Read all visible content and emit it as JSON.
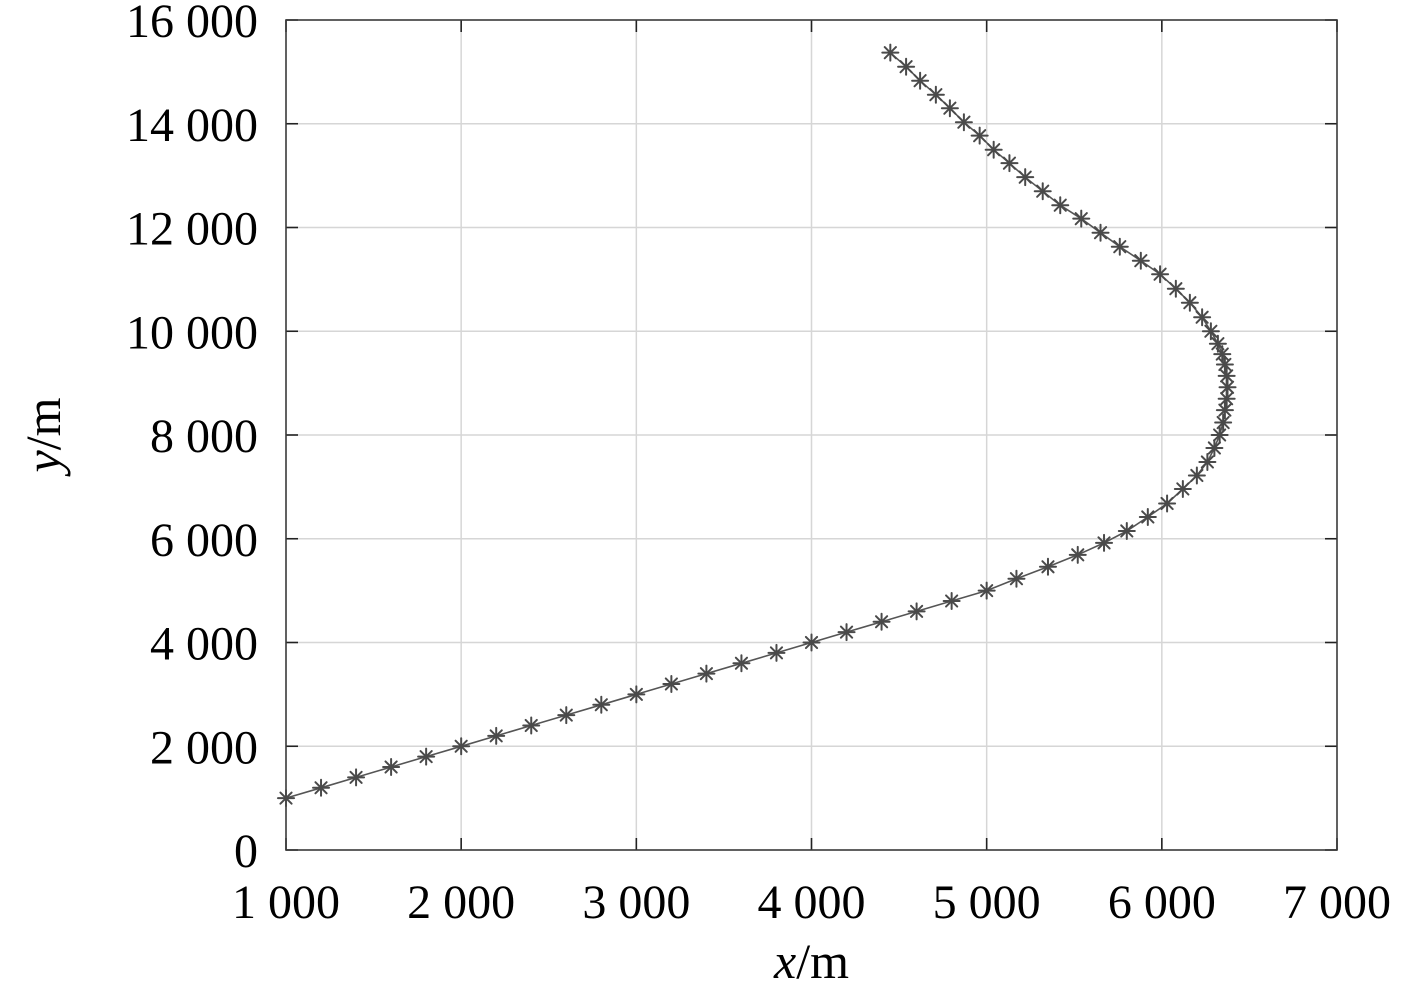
{
  "chart_data": {
    "type": "line",
    "title": "",
    "xlabel_var": "x",
    "xlabel_unit": "/m",
    "ylabel_var": "y",
    "ylabel_unit": "/m",
    "xlim": [
      1000,
      7000
    ],
    "ylim": [
      0,
      16000
    ],
    "xticks": [
      1000,
      2000,
      3000,
      4000,
      5000,
      6000,
      7000
    ],
    "yticks": [
      0,
      2000,
      4000,
      6000,
      8000,
      10000,
      12000,
      14000,
      16000
    ],
    "xtick_labels": [
      "1 000",
      "2 000",
      "3 000",
      "4 000",
      "5 000",
      "6 000",
      "7 000"
    ],
    "ytick_labels": [
      "0",
      "2 000",
      "4 000",
      "6 000",
      "8 000",
      "10 000",
      "12 000",
      "14 000",
      "16 000"
    ],
    "grid": true,
    "marker": "asterisk",
    "line_color": "#555555",
    "series": [
      {
        "x": [
          1000,
          1200,
          1400,
          1600,
          1800,
          2000,
          2200,
          2400,
          2600,
          2800,
          3000,
          3200,
          3400,
          3600,
          3800,
          4000,
          4200,
          4400,
          4600,
          4800,
          5000,
          5170,
          5350,
          5520,
          5670,
          5800,
          5920,
          6030,
          6120,
          6200,
          6260,
          6300,
          6330,
          6350,
          6360,
          6370,
          6375,
          6370,
          6360,
          6345,
          6320,
          6280,
          6230,
          6160,
          6080,
          5990,
          5880,
          5760,
          5650,
          5540,
          5420,
          5320,
          5220,
          5130,
          5040,
          4960,
          4870,
          4790,
          4710,
          4620,
          4540,
          4450
        ],
        "y": [
          1000,
          1200,
          1400,
          1600,
          1800,
          2000,
          2200,
          2400,
          2600,
          2800,
          3000,
          3200,
          3400,
          3600,
          3800,
          4000,
          4200,
          4400,
          4600,
          4800,
          5000,
          5230,
          5460,
          5690,
          5920,
          6150,
          6420,
          6680,
          6960,
          7220,
          7480,
          7750,
          8000,
          8240,
          8480,
          8700,
          8920,
          9140,
          9360,
          9560,
          9760,
          10000,
          10270,
          10550,
          10820,
          11100,
          11360,
          11630,
          11900,
          12170,
          12430,
          12700,
          12970,
          13240,
          13500,
          13770,
          14030,
          14300,
          14560,
          14830,
          15100,
          15370
        ]
      }
    ]
  }
}
